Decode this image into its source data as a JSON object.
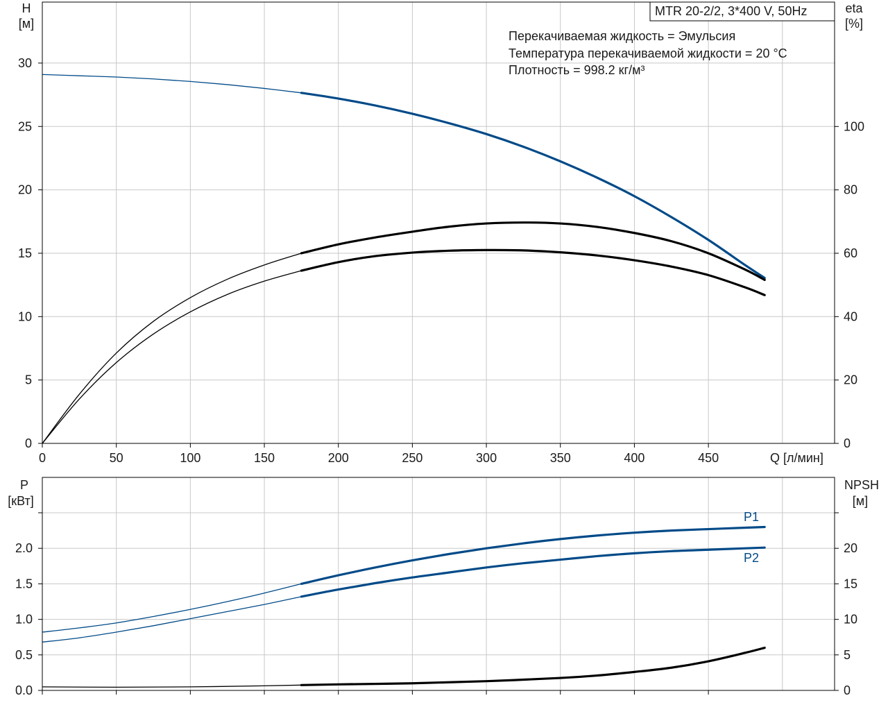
{
  "chart_data": [
    {
      "type": "line",
      "title_box": "MTR 20-2/2, 3*400 V, 50Hz",
      "info_lines": [
        "Перекачиваемая жидкость = Эмульсия",
        "Температура перекачиваемой жидкости = 20 °C",
        "Плотность = 998.2 кг/м³"
      ],
      "ylabel_left": [
        "H",
        "[м]"
      ],
      "ylabel_right": [
        "eta",
        "[%]"
      ],
      "xlabel": "Q [л/мин]",
      "xlim": [
        0,
        500
      ],
      "xticks": [
        0,
        50,
        100,
        150,
        200,
        250,
        300,
        350,
        400,
        450
      ],
      "xtick_labels": [
        "0",
        "50",
        "100",
        "150",
        "200",
        "250",
        "300",
        "350",
        "400",
        "450"
      ],
      "ylim_left": [
        0,
        30
      ],
      "yticks_left": [
        0,
        5,
        10,
        15,
        20,
        25,
        30
      ],
      "ylim_right": [
        0,
        120
      ],
      "yticks_right": [
        0,
        20,
        40,
        60,
        80,
        100
      ],
      "grid": true,
      "series": [
        {
          "id": "H",
          "axis": "left",
          "color": "#004a88",
          "operating_range": [
            175,
            488
          ],
          "x": [
            0,
            25,
            50,
            75,
            100,
            125,
            150,
            175,
            200,
            225,
            250,
            275,
            300,
            325,
            350,
            375,
            400,
            425,
            450,
            475,
            488
          ],
          "y": [
            29.1,
            29.0,
            28.9,
            28.75,
            28.55,
            28.3,
            28.0,
            27.65,
            27.2,
            26.65,
            26.0,
            25.25,
            24.4,
            23.4,
            22.25,
            20.95,
            19.5,
            17.85,
            16.05,
            14.05,
            13.05
          ]
        },
        {
          "id": "eta",
          "axis": "right",
          "color": "#000000",
          "operating_range": [
            175,
            488
          ],
          "x": [
            0,
            25,
            50,
            75,
            100,
            125,
            150,
            175,
            200,
            225,
            250,
            275,
            300,
            325,
            350,
            375,
            400,
            425,
            450,
            475,
            488
          ],
          "y": [
            0,
            14,
            25.5,
            34.5,
            41.5,
            47,
            51.2,
            54.5,
            57.2,
            59.1,
            60.2,
            60.8,
            61.0,
            60.9,
            60.3,
            59.3,
            57.8,
            55.8,
            53.1,
            49.2,
            46.8
          ]
        },
        {
          "id": "eta_total",
          "axis": "right",
          "color": "#000000",
          "operating_range": [
            175,
            488
          ],
          "x": [
            0,
            25,
            50,
            75,
            100,
            125,
            150,
            175,
            200,
            225,
            250,
            275,
            300,
            325,
            350,
            375,
            400,
            425,
            450,
            475,
            488
          ],
          "y": [
            0,
            15.5,
            28.5,
            38.5,
            46,
            51.8,
            56.3,
            60.0,
            62.8,
            65.0,
            66.8,
            68.4,
            69.4,
            69.7,
            69.4,
            68.3,
            66.4,
            63.8,
            60.0,
            54.8,
            51.6
          ]
        }
      ]
    },
    {
      "type": "line",
      "ylabel_left": [
        "P",
        "[кВт]"
      ],
      "ylabel_right": [
        "NPSH",
        "[м]"
      ],
      "xlim": [
        0,
        500
      ],
      "xticks": [
        0,
        50,
        100,
        150,
        200,
        250,
        300,
        350,
        400,
        450
      ],
      "ylim_left": [
        0,
        2.5
      ],
      "yticks_left": [
        0,
        0.5,
        1.0,
        1.5,
        2.0
      ],
      "ytick_labels_left": [
        "0.0",
        "0.5",
        "1.0",
        "1.5",
        "2.0"
      ],
      "ylim_right": [
        0,
        25
      ],
      "yticks_right": [
        0,
        5,
        10,
        15,
        20
      ],
      "grid": true,
      "series": [
        {
          "name": "P1",
          "axis": "left",
          "color": "#004a88",
          "operating_range": [
            175,
            488
          ],
          "x": [
            0,
            25,
            50,
            75,
            100,
            125,
            150,
            175,
            200,
            225,
            250,
            275,
            300,
            325,
            350,
            375,
            400,
            425,
            450,
            475,
            488
          ],
          "y": [
            0.82,
            0.88,
            0.95,
            1.04,
            1.14,
            1.25,
            1.37,
            1.5,
            1.62,
            1.73,
            1.83,
            1.92,
            2.0,
            2.07,
            2.13,
            2.18,
            2.22,
            2.25,
            2.27,
            2.29,
            2.3
          ]
        },
        {
          "name": "P2",
          "axis": "left",
          "color": "#004a88",
          "operating_range": [
            175,
            488
          ],
          "x": [
            0,
            25,
            50,
            75,
            100,
            125,
            150,
            175,
            200,
            225,
            250,
            275,
            300,
            325,
            350,
            375,
            400,
            425,
            450,
            475,
            488
          ],
          "y": [
            0.68,
            0.74,
            0.82,
            0.91,
            1.01,
            1.11,
            1.21,
            1.32,
            1.42,
            1.51,
            1.59,
            1.66,
            1.73,
            1.79,
            1.84,
            1.89,
            1.93,
            1.96,
            1.98,
            2.0,
            2.01
          ]
        },
        {
          "id": "NPSH",
          "axis": "right",
          "color": "#000000",
          "operating_range": [
            175,
            488
          ],
          "x": [
            0,
            50,
            100,
            150,
            175,
            200,
            250,
            300,
            350,
            375,
            400,
            425,
            450,
            475,
            488
          ],
          "y": [
            0.5,
            0.45,
            0.5,
            0.65,
            0.75,
            0.85,
            1.0,
            1.3,
            1.75,
            2.1,
            2.6,
            3.2,
            4.1,
            5.3,
            6.0
          ]
        }
      ]
    }
  ]
}
